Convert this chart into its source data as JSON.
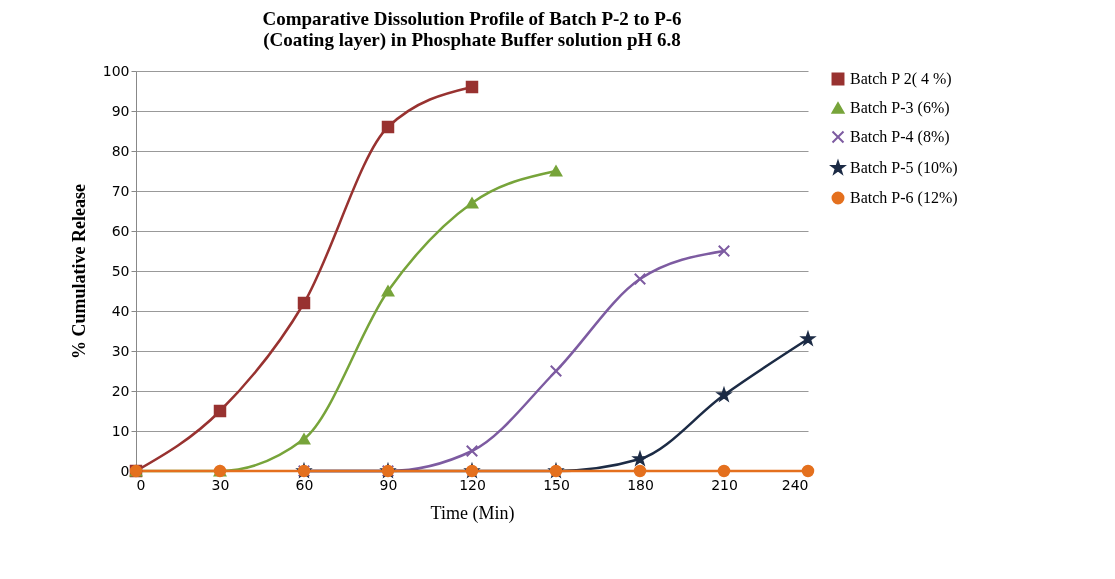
{
  "chart_data": {
    "type": "line",
    "title": "Comparative Dissolution Profile of Batch P-2 to P-6 (Coating layer) in Phosphate Buffer solution pH 6.8",
    "xlabel": "Time (Min)",
    "ylabel": "% Cumulative Release",
    "x": [
      0,
      30,
      60,
      90,
      120,
      150,
      180,
      210,
      240
    ],
    "series": [
      {
        "name": "Batch P 2( 4 %)",
        "color": "#983230",
        "marker": "square",
        "values": [
          0,
          15,
          42,
          86,
          96,
          null,
          null,
          null,
          null
        ]
      },
      {
        "name": "Batch P-3 (6%)",
        "color": "#77a43a",
        "marker": "triangle",
        "values": [
          0,
          0,
          8,
          45,
          67,
          75,
          null,
          null,
          null
        ]
      },
      {
        "name": "Batch P-4 (8%)",
        "color": "#7d5ba1",
        "marker": "cross",
        "values": [
          null,
          null,
          0,
          0,
          5,
          25,
          48,
          55,
          null
        ]
      },
      {
        "name": "Batch P-5 (10%)",
        "color": "#1c2b45",
        "marker": "star",
        "values": [
          null,
          null,
          0,
          0,
          0,
          0,
          3,
          19,
          33
        ]
      },
      {
        "name": "Batch P-6 (12%)",
        "color": "#e4701e",
        "marker": "circle",
        "values": [
          0,
          0,
          0,
          0,
          0,
          0,
          0,
          0,
          0
        ]
      }
    ],
    "xlim": [
      0,
      240
    ],
    "xticks": [
      0,
      30,
      60,
      90,
      120,
      150,
      180,
      210,
      240
    ],
    "ylim": [
      0,
      100
    ],
    "yticks": [
      0,
      10,
      20,
      30,
      40,
      50,
      60,
      70,
      80,
      90,
      100
    ],
    "grid": "y",
    "legend": "right"
  }
}
